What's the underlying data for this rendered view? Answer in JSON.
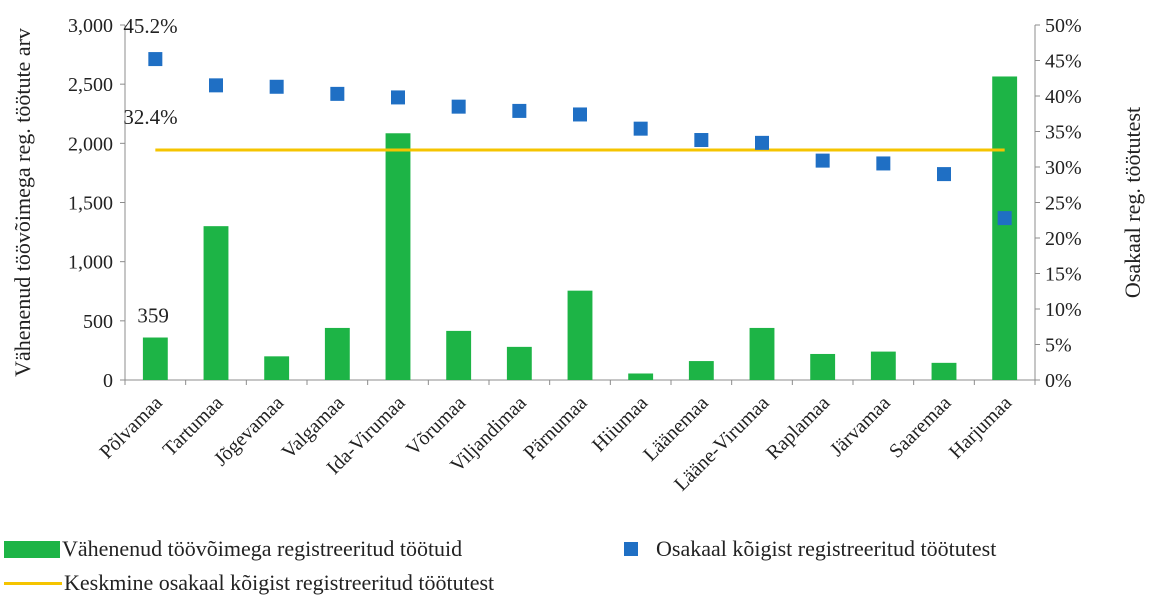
{
  "colors": {
    "bar": "#1db446",
    "marker": "#1f6fc4",
    "average": "#f5c400",
    "axis": "#8c8c8c"
  },
  "chart_data": {
    "type": "bar",
    "categories": [
      "Põlvamaa",
      "Tartumaa",
      "Jõgevamaa",
      "Valgamaa",
      "Ida-Virumaa",
      "Võrumaa",
      "Viljandimaa",
      "Pärnumaa",
      "Hiiumaa",
      "Läänemaa",
      "Lääne-Virumaa",
      "Raplamaa",
      "Järvamaa",
      "Saaremaa",
      "Harjumaa"
    ],
    "series": [
      {
        "name": "Vähenenud töövõimega registreeritud töötuid",
        "type": "bar",
        "axis": "left",
        "values": [
          359,
          1300,
          200,
          440,
          2085,
          415,
          280,
          755,
          55,
          160,
          440,
          220,
          240,
          145,
          2565
        ]
      },
      {
        "name": "Osakaal kõigist registreeritud töötutest",
        "type": "scatter",
        "axis": "right",
        "values": [
          45.2,
          41.5,
          41.3,
          40.3,
          39.8,
          38.5,
          37.9,
          37.4,
          35.4,
          33.8,
          33.4,
          30.9,
          30.5,
          29.0,
          22.8
        ]
      },
      {
        "name": "Keskmine osakaal kõigist registreeritud töötutest",
        "type": "line",
        "axis": "right",
        "value": 32.4
      }
    ],
    "ylabel": "Vähenenud töövõimega reg. töötute arv",
    "y2label": "Osakaal reg. töötutest",
    "ylim": [
      0,
      3000
    ],
    "y2lim": [
      0,
      50
    ],
    "yticks": [
      "0",
      "500",
      "1,000",
      "1,500",
      "2,000",
      "2,500",
      "3,000"
    ],
    "y2ticks": [
      "0%",
      "5%",
      "10%",
      "15%",
      "20%",
      "25%",
      "30%",
      "35%",
      "40%",
      "45%",
      "50%"
    ],
    "annotations": [
      "45.2%",
      "32.4%",
      "359"
    ],
    "grid": false,
    "legend_position": "bottom"
  },
  "legend": {
    "bars": "Vähenenud töövõimega registreeritud töötuid",
    "markers": "Osakaal kõigist registreeritud töötutest",
    "line": "Keskmine osakaal kõigist registreeritud töötutest"
  }
}
